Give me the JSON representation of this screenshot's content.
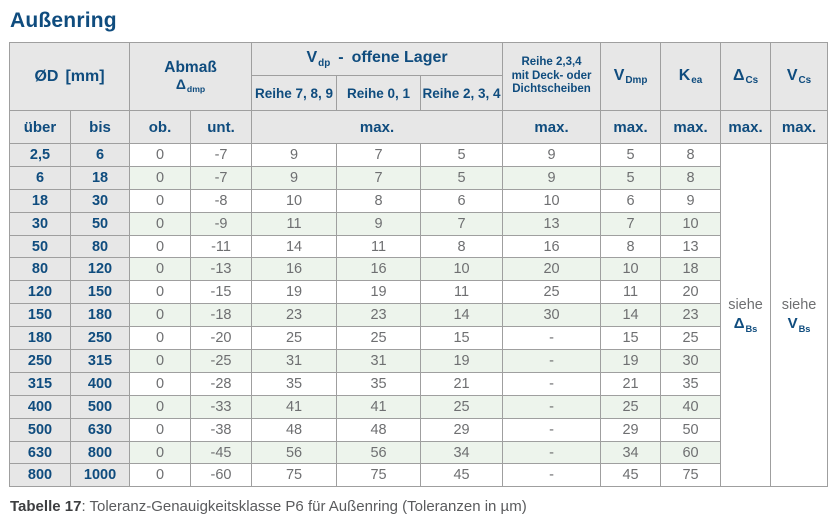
{
  "page": {
    "title": "Außenring",
    "caption_bold": "Tabelle 17",
    "caption_rest": ": Toleranz-Genauigkeitsklasse P6 für Außenring (Toleranzen in µm)"
  },
  "colors": {
    "accent_blue": "#0f4c7e",
    "header_bg": "#e7e7e7",
    "stripe_green": "#edf4ec",
    "data_gray": "#6e6f71",
    "border_gray": "#9f9f9f"
  },
  "table": {
    "headers": {
      "diameter": {
        "symbol": "ØD",
        "unit": "[mm]"
      },
      "abmass": {
        "line1": "Abmaß",
        "sym": "Δ",
        "sub": "dmp"
      },
      "vdp_group": {
        "base": "V",
        "sub": "dp",
        "dash": "-",
        "rest": "offene Lager"
      },
      "reihe_789": "Reihe 7, 8, 9",
      "reihe_01": "Reihe 0, 1",
      "reihe_234": "Reihe 2, 3, 4",
      "deck": {
        "line1": "Reihe 2,3,4",
        "line2": "mit Deck- oder",
        "line3": "Dichtscheiben"
      },
      "vdmp": {
        "base": "V",
        "sub": "Dmp"
      },
      "kea": {
        "base": "K",
        "sub": "ea"
      },
      "delta_cs": {
        "base": "Δ",
        "sub": "Cs"
      },
      "v_cs": {
        "base": "V",
        "sub": "Cs"
      },
      "ueber": "über",
      "bis": "bis",
      "ob": "ob.",
      "unt": "unt.",
      "max": "max."
    },
    "merged": {
      "delta_bs": {
        "word": "siehe",
        "base": "Δ",
        "sub": "Bs"
      },
      "v_bs": {
        "word": "siehe",
        "base": "V",
        "sub": "Bs"
      }
    },
    "rows": [
      [
        "2,5",
        "6",
        "0",
        "-7",
        "9",
        "7",
        "5",
        "9",
        "5",
        "8"
      ],
      [
        "6",
        "18",
        "0",
        "-7",
        "9",
        "7",
        "5",
        "9",
        "5",
        "8"
      ],
      [
        "18",
        "30",
        "0",
        "-8",
        "10",
        "8",
        "6",
        "10",
        "6",
        "9"
      ],
      [
        "30",
        "50",
        "0",
        "-9",
        "11",
        "9",
        "7",
        "13",
        "7",
        "10"
      ],
      [
        "50",
        "80",
        "0",
        "-11",
        "14",
        "11",
        "8",
        "16",
        "8",
        "13"
      ],
      [
        "80",
        "120",
        "0",
        "-13",
        "16",
        "16",
        "10",
        "20",
        "10",
        "18"
      ],
      [
        "120",
        "150",
        "0",
        "-15",
        "19",
        "19",
        "11",
        "25",
        "11",
        "20"
      ],
      [
        "150",
        "180",
        "0",
        "-18",
        "23",
        "23",
        "14",
        "30",
        "14",
        "23"
      ],
      [
        "180",
        "250",
        "0",
        "-20",
        "25",
        "25",
        "15",
        "-",
        "15",
        "25"
      ],
      [
        "250",
        "315",
        "0",
        "-25",
        "31",
        "31",
        "19",
        "-",
        "19",
        "30"
      ],
      [
        "315",
        "400",
        "0",
        "-28",
        "35",
        "35",
        "21",
        "-",
        "21",
        "35"
      ],
      [
        "400",
        "500",
        "0",
        "-33",
        "41",
        "41",
        "25",
        "-",
        "25",
        "40"
      ],
      [
        "500",
        "630",
        "0",
        "-38",
        "48",
        "48",
        "29",
        "-",
        "29",
        "50"
      ],
      [
        "630",
        "800",
        "0",
        "-45",
        "56",
        "56",
        "34",
        "-",
        "34",
        "60"
      ],
      [
        "800",
        "1000",
        "0",
        "-60",
        "75",
        "75",
        "45",
        "-",
        "45",
        "75"
      ]
    ]
  }
}
